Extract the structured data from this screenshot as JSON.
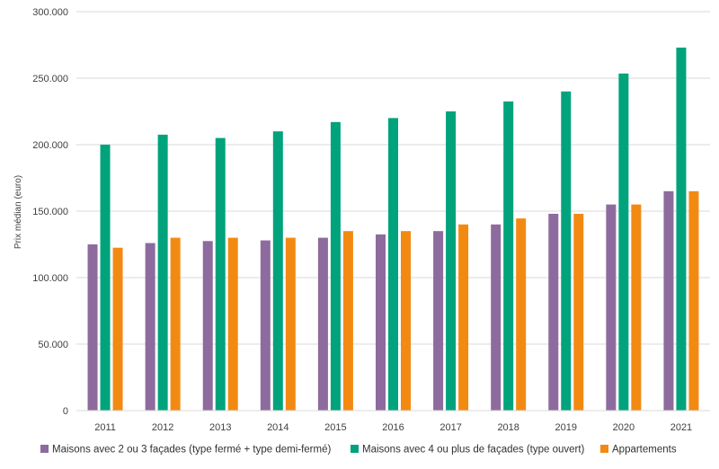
{
  "chart_data": {
    "type": "bar",
    "title": "",
    "xlabel": "",
    "ylabel": "Prix médian (euro)",
    "ylim": [
      0,
      300000
    ],
    "yticks": [
      "0",
      "50.000",
      "100.000",
      "150.000",
      "200.000",
      "250.000",
      "300.000"
    ],
    "grid": true,
    "legend_position": "bottom",
    "categories": [
      "2011",
      "2012",
      "2013",
      "2014",
      "2015",
      "2016",
      "2017",
      "2018",
      "2019",
      "2020",
      "2021"
    ],
    "series": [
      {
        "name": "Maisons avec 2 ou 3 façades (type fermé + type demi-fermé)",
        "color": "#8e6b9e",
        "values": [
          125000,
          126000,
          127500,
          128000,
          130000,
          132500,
          135000,
          140000,
          148000,
          155000,
          165000
        ]
      },
      {
        "name": "Maisons avec 4 ou plus de façades (type ouvert)",
        "color": "#00a37c",
        "values": [
          200000,
          207500,
          205000,
          210000,
          217000,
          220000,
          225000,
          232500,
          240000,
          253500,
          273000
        ]
      },
      {
        "name": "Appartements",
        "color": "#f28a12",
        "values": [
          122500,
          130000,
          130000,
          130000,
          135000,
          135000,
          140000,
          144500,
          148000,
          155000,
          165000
        ]
      }
    ]
  }
}
